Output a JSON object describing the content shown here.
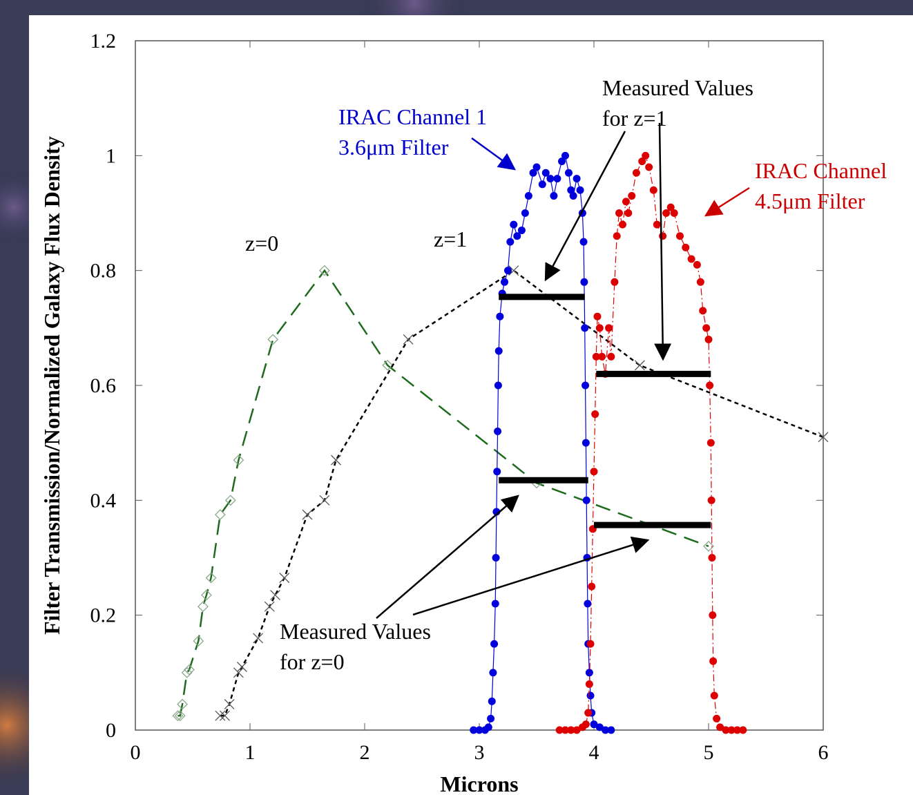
{
  "chart_data": {
    "type": "line",
    "xlabel": "Microns",
    "ylabel": "Filter Transmission/Normalized Galaxy Flux Density",
    "xlim": [
      0,
      6
    ],
    "ylim": [
      0,
      1.2
    ],
    "xticks": [
      0,
      1,
      2,
      3,
      4,
      5,
      6
    ],
    "yticks": [
      0,
      0.2,
      0.4,
      0.6,
      0.8,
      1,
      1.2
    ],
    "grid": false,
    "series": [
      {
        "name": "z=0",
        "color": "#1e6b1e",
        "marker": "diamond",
        "dash": "long",
        "x": [
          0.37,
          0.39,
          0.41,
          0.45,
          0.47,
          0.55,
          0.59,
          0.62,
          0.66,
          0.74,
          0.83,
          0.9,
          1.2,
          1.65,
          2.2,
          3.5,
          5.0
        ],
        "values": [
          0.025,
          0.025,
          0.045,
          0.1,
          0.105,
          0.155,
          0.215,
          0.235,
          0.265,
          0.375,
          0.4,
          0.47,
          0.68,
          0.8,
          0.635,
          0.43,
          0.32
        ]
      },
      {
        "name": "z=1",
        "color": "#000000",
        "marker": "x",
        "dash": "short",
        "x": [
          0.74,
          0.78,
          0.82,
          0.9,
          0.93,
          1.07,
          1.17,
          1.22,
          1.3,
          1.5,
          1.65,
          1.75,
          2.38,
          3.3,
          4.4,
          6.0
        ],
        "values": [
          0.025,
          0.025,
          0.045,
          0.1,
          0.11,
          0.16,
          0.215,
          0.235,
          0.265,
          0.375,
          0.4,
          0.47,
          0.68,
          0.8,
          0.635,
          0.51
        ]
      },
      {
        "color": "#0000dd",
        "marker": "dot",
        "dash": "none",
        "x": [
          2.95,
          3.0,
          3.05,
          3.08,
          3.1,
          3.11,
          3.12,
          3.13,
          3.14,
          3.145,
          3.15,
          3.155,
          3.16,
          3.165,
          3.17,
          3.18,
          3.2,
          3.22,
          3.25,
          3.27,
          3.3,
          3.33,
          3.37,
          3.4,
          3.43,
          3.47,
          3.5,
          3.55,
          3.58,
          3.62,
          3.65,
          3.68,
          3.72,
          3.75,
          3.78,
          3.8,
          3.82,
          3.85,
          3.88,
          3.9,
          3.91,
          3.915,
          3.92,
          3.925,
          3.93,
          3.935,
          3.94,
          3.945,
          3.95,
          3.96,
          3.97,
          3.98,
          4.0,
          4.05,
          4.1,
          4.15
        ],
        "values": [
          0,
          0,
          0,
          0.005,
          0.02,
          0.05,
          0.1,
          0.15,
          0.22,
          0.3,
          0.38,
          0.45,
          0.52,
          0.6,
          0.66,
          0.72,
          0.76,
          0.78,
          0.8,
          0.85,
          0.88,
          0.86,
          0.87,
          0.9,
          0.93,
          0.97,
          0.98,
          0.95,
          0.97,
          0.96,
          0.93,
          0.96,
          0.99,
          1.0,
          0.97,
          0.94,
          0.93,
          0.96,
          0.94,
          0.9,
          0.85,
          0.78,
          0.7,
          0.6,
          0.5,
          0.4,
          0.3,
          0.22,
          0.15,
          0.1,
          0.06,
          0.03,
          0.01,
          0.005,
          0,
          0
        ]
      },
      {
        "color": "#dd0000",
        "marker": "dot",
        "dash": "dashdot",
        "x": [
          3.7,
          3.75,
          3.8,
          3.85,
          3.9,
          3.93,
          3.95,
          3.96,
          3.97,
          3.98,
          3.99,
          4.0,
          4.01,
          4.02,
          4.03,
          4.05,
          4.07,
          4.1,
          4.13,
          4.15,
          4.18,
          4.2,
          4.22,
          4.25,
          4.28,
          4.3,
          4.33,
          4.37,
          4.42,
          4.45,
          4.48,
          4.52,
          4.55,
          4.6,
          4.63,
          4.67,
          4.7,
          4.75,
          4.8,
          4.85,
          4.9,
          4.93,
          4.95,
          4.98,
          5.0,
          5.01,
          5.02,
          5.025,
          5.03,
          5.035,
          5.04,
          5.05,
          5.07,
          5.1,
          5.15,
          5.2,
          5.25,
          5.3
        ],
        "values": [
          0,
          0,
          0,
          0,
          0.005,
          0.01,
          0.03,
          0.08,
          0.15,
          0.25,
          0.35,
          0.45,
          0.55,
          0.65,
          0.72,
          0.7,
          0.65,
          0.62,
          0.7,
          0.65,
          0.78,
          0.86,
          0.9,
          0.88,
          0.92,
          0.9,
          0.93,
          0.97,
          0.99,
          1.0,
          0.98,
          0.94,
          0.88,
          0.86,
          0.9,
          0.91,
          0.9,
          0.86,
          0.84,
          0.82,
          0.81,
          0.78,
          0.73,
          0.7,
          0.68,
          0.6,
          0.5,
          0.4,
          0.3,
          0.2,
          0.12,
          0.06,
          0.02,
          0.005,
          0,
          0,
          0,
          0
        ]
      }
    ],
    "measured_segments": [
      {
        "x": [
          3.17,
          3.92
        ],
        "value": 0.754
      },
      {
        "x": [
          4.02,
          5.02
        ],
        "value": 0.62
      },
      {
        "x": [
          3.17,
          3.95
        ],
        "value": 0.435
      },
      {
        "x": [
          4.0,
          5.02
        ],
        "value": 0.357
      }
    ],
    "annotations": [
      {
        "lines": [
          "IRAC Channel 1",
          "3.6μm Filter"
        ],
        "color": "#0000cc"
      },
      {
        "lines": [
          "IRAC Channel",
          "4.5μm Filter"
        ],
        "color": "#cc0000"
      },
      {
        "lines": [
          "Measured Values",
          "for z=1"
        ],
        "color": "#000000"
      },
      {
        "lines": [
          "Measured Values",
          "for z=0"
        ],
        "color": "#000000"
      }
    ]
  }
}
